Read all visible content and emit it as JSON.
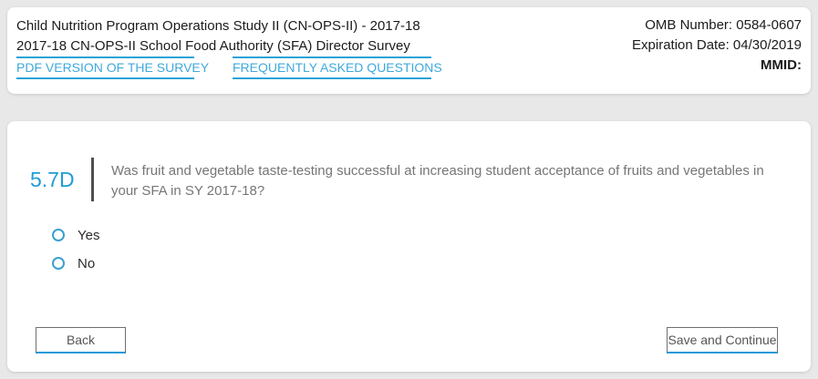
{
  "header": {
    "title": "Child Nutrition Program Operations Study II (CN-OPS-II) - 2017-18",
    "subtitle": "2017-18 CN-OPS-II School Food Authority (SFA) Director Survey",
    "links": [
      {
        "label": "PDF VERSION OF THE SURVEY"
      },
      {
        "label": "FREQUENTLY ASKED QUESTIONS"
      }
    ],
    "meta": {
      "omb": {
        "label": "OMB Number:",
        "value": "0584-0607"
      },
      "expiration": {
        "label": "Expiration Date:",
        "value": "04/30/2019"
      },
      "mmid_label": "MMID:"
    }
  },
  "question": {
    "number": "5.7D",
    "text": "Was fruit and vegetable taste-testing successful at increasing student acceptance of fruits and vegetables in your SFA in SY 2017-18?",
    "options": [
      {
        "label": "Yes",
        "selected": false
      },
      {
        "label": "No",
        "selected": false
      }
    ]
  },
  "footer": {
    "back_label": "Back",
    "save_label": "Save and Continue"
  },
  "colors": {
    "accent_blue": "#1e9cd7",
    "link_blue": "#3fa9dc",
    "underline_blue": "#2aa3d8",
    "button_accent_blue": "#1d9bd8",
    "page_background": "#e8e8e8"
  }
}
